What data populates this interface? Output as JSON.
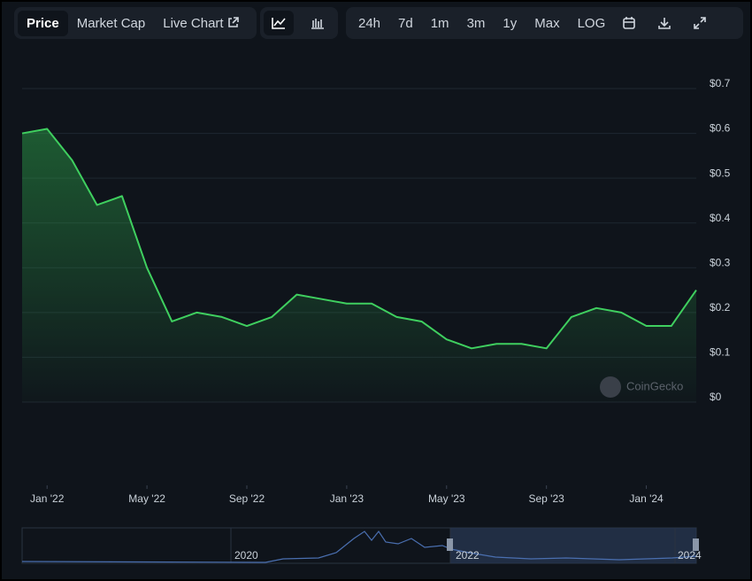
{
  "toolbar": {
    "tabs": [
      "Price",
      "Market Cap",
      "Live Chart"
    ],
    "ranges": [
      "24h",
      "7d",
      "1m",
      "3m",
      "1y",
      "Max",
      "LOG"
    ]
  },
  "watermark": "CoinGecko",
  "navigator_labels": [
    "2020",
    "2022",
    "2024"
  ],
  "chart_data": {
    "type": "line",
    "x": [
      "2021-12",
      "2022-01",
      "2022-02",
      "2022-03",
      "2022-04",
      "2022-05",
      "2022-06",
      "2022-07",
      "2022-08",
      "2022-09",
      "2022-10",
      "2022-11",
      "2022-12",
      "2023-01",
      "2023-02",
      "2023-03",
      "2023-04",
      "2023-05",
      "2023-06",
      "2023-07",
      "2023-08",
      "2023-09",
      "2023-10",
      "2023-11",
      "2023-12",
      "2024-01",
      "2024-02",
      "2024-03"
    ],
    "series": [
      {
        "name": "Price",
        "color": "#3fcf5f",
        "values": [
          0.6,
          0.61,
          0.54,
          0.44,
          0.46,
          0.3,
          0.18,
          0.2,
          0.19,
          0.17,
          0.19,
          0.24,
          0.23,
          0.22,
          0.22,
          0.19,
          0.18,
          0.14,
          0.12,
          0.13,
          0.13,
          0.12,
          0.19,
          0.21,
          0.2,
          0.17,
          0.17,
          0.25
        ]
      }
    ],
    "xlim": [
      "2021-12",
      "2024-03"
    ],
    "xticks": [
      {
        "value": "2022-01",
        "label": "Jan '22"
      },
      {
        "value": "2022-05",
        "label": "May '22"
      },
      {
        "value": "2022-09",
        "label": "Sep '22"
      },
      {
        "value": "2023-01",
        "label": "Jan '23"
      },
      {
        "value": "2023-05",
        "label": "May '23"
      },
      {
        "value": "2023-09",
        "label": "Sep '23"
      },
      {
        "value": "2024-01",
        "label": "Jan '24"
      }
    ],
    "ylim": [
      0,
      0.7
    ],
    "yticks": [
      {
        "value": 0,
        "label": "$0"
      },
      {
        "value": 0.1,
        "label": "$0.1"
      },
      {
        "value": 0.2,
        "label": "$0.2"
      },
      {
        "value": 0.3,
        "label": "$0.3"
      },
      {
        "value": 0.4,
        "label": "$0.4"
      },
      {
        "value": 0.5,
        "label": "$0.5"
      },
      {
        "value": 0.6,
        "label": "$0.6"
      },
      {
        "value": 0.7,
        "label": "$0.7"
      }
    ],
    "grid": true
  }
}
